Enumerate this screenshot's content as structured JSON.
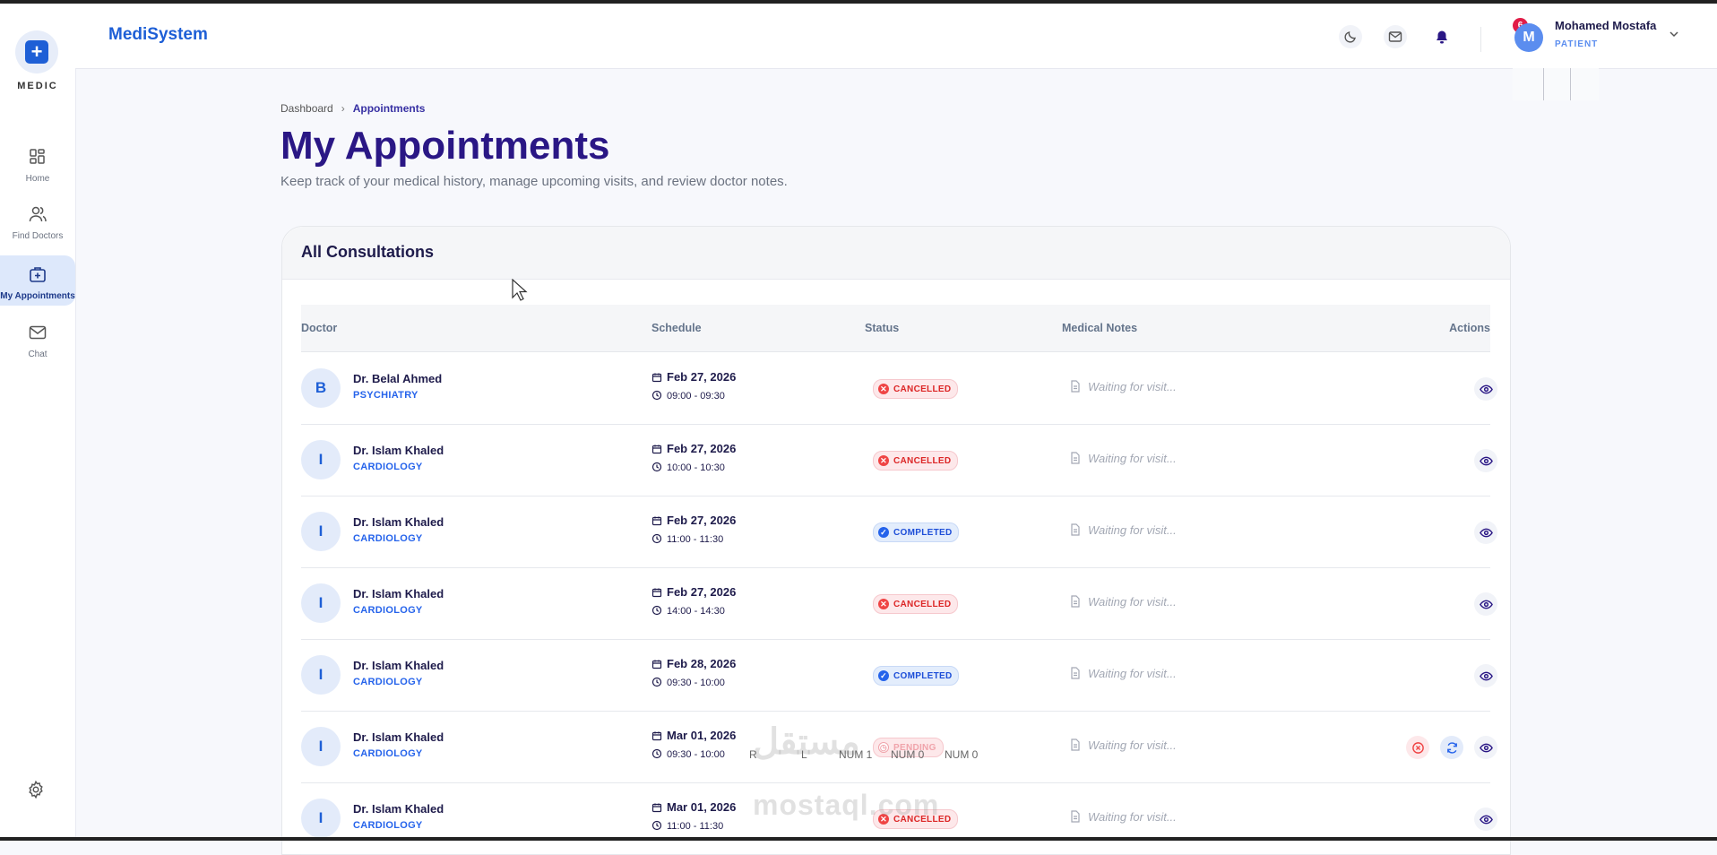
{
  "app": {
    "brand": "MediSystem",
    "logo_text": "MEDIC"
  },
  "sidebar": {
    "items": [
      {
        "label": "Home",
        "icon": "dashboard-icon"
      },
      {
        "label": "Find Doctors",
        "icon": "users-icon"
      },
      {
        "label": "My Appointments",
        "icon": "medical-bag-icon",
        "active": true
      },
      {
        "label": "Chat",
        "icon": "mail-icon"
      }
    ],
    "settings_icon": "gear-icon"
  },
  "header": {
    "notification_count": "6",
    "user": {
      "initial": "M",
      "name": "Mohamed Mostafa",
      "role": "PATIENT"
    }
  },
  "breadcrumb": {
    "root": "Dashboard",
    "separator": "›",
    "current": "Appointments"
  },
  "page": {
    "title": "My Appointments",
    "subtitle": "Keep track of your medical history, manage upcoming visits, and review doctor notes."
  },
  "card": {
    "title": "All Consultations",
    "columns": [
      "Doctor",
      "Schedule",
      "Status",
      "Medical Notes",
      "Actions"
    ]
  },
  "appointments": [
    {
      "initial": "B",
      "doctor": "Dr. Belal Ahmed",
      "specialty": "PSYCHIATRY",
      "date": "Feb 27, 2026",
      "time": "09:00 - 09:30",
      "status": "CANCELLED",
      "notes": "Waiting for visit..."
    },
    {
      "initial": "I",
      "doctor": "Dr. Islam Khaled",
      "specialty": "CARDIOLOGY",
      "date": "Feb 27, 2026",
      "time": "10:00 - 10:30",
      "status": "CANCELLED",
      "notes": "Waiting for visit..."
    },
    {
      "initial": "I",
      "doctor": "Dr. Islam Khaled",
      "specialty": "CARDIOLOGY",
      "date": "Feb 27, 2026",
      "time": "11:00 - 11:30",
      "status": "COMPLETED",
      "notes": "Waiting for visit..."
    },
    {
      "initial": "I",
      "doctor": "Dr. Islam Khaled",
      "specialty": "CARDIOLOGY",
      "date": "Feb 27, 2026",
      "time": "14:00 - 14:30",
      "status": "CANCELLED",
      "notes": "Waiting for visit..."
    },
    {
      "initial": "I",
      "doctor": "Dr. Islam Khaled",
      "specialty": "CARDIOLOGY",
      "date": "Feb 28, 2026",
      "time": "09:30 - 10:00",
      "status": "COMPLETED",
      "notes": "Waiting for visit..."
    },
    {
      "initial": "I",
      "doctor": "Dr. Islam Khaled",
      "specialty": "CARDIOLOGY",
      "date": "Mar 01, 2026",
      "time": "09:30 - 10:00",
      "status": "PENDING",
      "notes": "Waiting for visit..."
    },
    {
      "initial": "I",
      "doctor": "Dr. Islam Khaled",
      "specialty": "CARDIOLOGY",
      "date": "Mar 01, 2026",
      "time": "11:00 - 11:30",
      "status": "CANCELLED",
      "notes": "Waiting for visit..."
    }
  ],
  "overlay": {
    "watermark_arabic": "مستقل",
    "watermark_latin": "mostaql.com",
    "osd": [
      "R",
      "L",
      "NUM 1",
      "NUM 0",
      "NUM 0"
    ]
  },
  "colors": {
    "brand": "#1e5fd6",
    "title": "#2a1785",
    "cancelled": "#dc2626",
    "completed": "#1d4ed8"
  }
}
